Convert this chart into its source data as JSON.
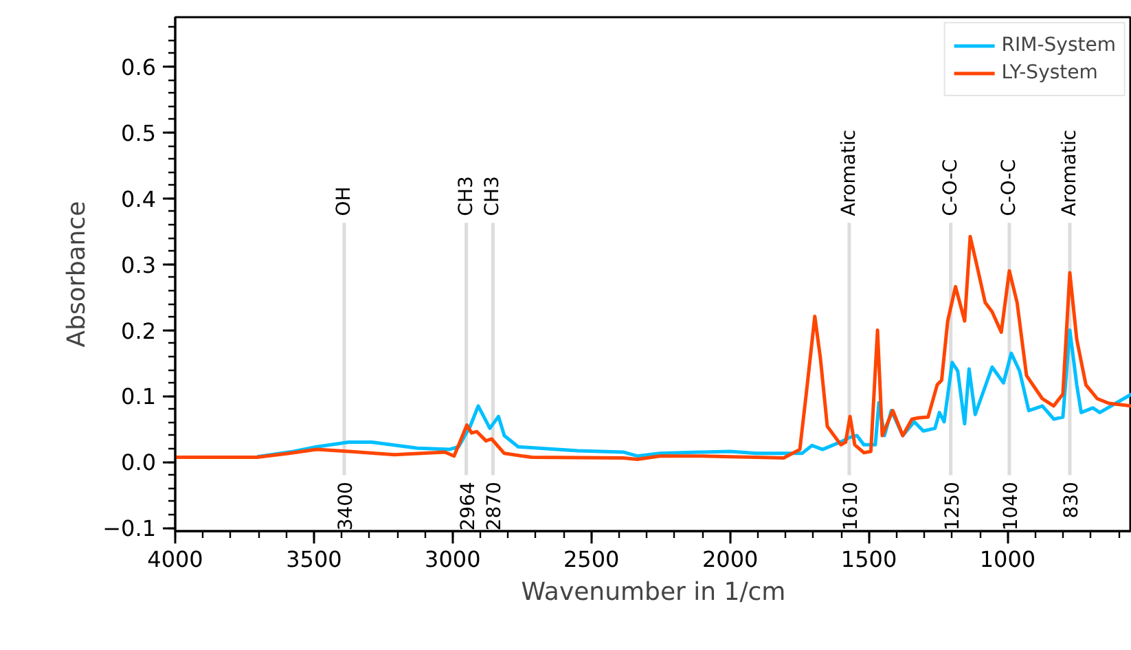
{
  "chart_data": {
    "type": "line",
    "xlabel": "Wavenumber in 1/cm",
    "ylabel": "Absorbance",
    "xlim": [
      4000,
      553
    ],
    "ylim": [
      -0.105,
      0.675
    ],
    "xticks": [
      4000,
      3500,
      3000,
      2500,
      2000,
      1500,
      1000
    ],
    "yticks": [
      {
        "value": -0.1,
        "label": "−0.1"
      },
      {
        "value": 0.0,
        "label": "0.0"
      },
      {
        "value": 0.1,
        "label": "0.1"
      },
      {
        "value": 0.2,
        "label": "0.2"
      },
      {
        "value": 0.3,
        "label": "0.3"
      },
      {
        "value": 0.4,
        "label": "0.4"
      },
      {
        "value": 0.5,
        "label": "0.5"
      },
      {
        "value": 0.6,
        "label": "0.6"
      }
    ],
    "grid": false,
    "legend": "top right",
    "series": [
      {
        "name": "RIM-System",
        "color": "#00bfff",
        "x": [
          3705,
          3573,
          3490,
          3375,
          3292,
          3127,
          3012,
          2979,
          2937,
          2908,
          2866,
          2835,
          2814,
          2764,
          2550,
          2385,
          2335,
          2253,
          2100,
          2000,
          1906,
          1741,
          1705,
          1667,
          1593,
          1571,
          1543,
          1518,
          1477,
          1464,
          1444,
          1419,
          1378,
          1337,
          1304,
          1262,
          1246,
          1229,
          1200,
          1180,
          1155,
          1139,
          1117,
          1056,
          1015,
          987,
          957,
          924,
          875,
          834,
          801,
          776,
          751,
          735,
          693,
          668,
          553
        ],
        "values": [
          0.008,
          0.016,
          0.023,
          0.03,
          0.03,
          0.021,
          0.019,
          0.023,
          0.054,
          0.085,
          0.051,
          0.069,
          0.04,
          0.023,
          0.017,
          0.015,
          0.009,
          0.013,
          0.015,
          0.016,
          0.013,
          0.013,
          0.025,
          0.019,
          0.032,
          0.037,
          0.04,
          0.026,
          0.026,
          0.09,
          0.04,
          0.078,
          0.04,
          0.061,
          0.047,
          0.051,
          0.075,
          0.061,
          0.151,
          0.138,
          0.058,
          0.141,
          0.072,
          0.144,
          0.12,
          0.165,
          0.138,
          0.078,
          0.085,
          0.065,
          0.068,
          0.2,
          0.117,
          0.075,
          0.082,
          0.075,
          0.103
        ]
      },
      {
        "name": "LY-System",
        "color": "#ff4500",
        "x": [
          4000,
          3705,
          3589,
          3490,
          3375,
          3210,
          3028,
          2995,
          2949,
          2932,
          2913,
          2880,
          2860,
          2814,
          2715,
          2385,
          2335,
          2253,
          2100,
          2000,
          1906,
          1807,
          1749,
          1724,
          1695,
          1675,
          1650,
          1601,
          1584,
          1568,
          1551,
          1518,
          1493,
          1469,
          1452,
          1414,
          1378,
          1345,
          1320,
          1287,
          1254,
          1238,
          1216,
          1188,
          1155,
          1135,
          1114,
          1081,
          1056,
          1023,
          994,
          966,
          932,
          875,
          834,
          801,
          776,
          751,
          718,
          677,
          635,
          553
        ],
        "values": [
          0.007,
          0.007,
          0.013,
          0.019,
          0.016,
          0.011,
          0.015,
          0.009,
          0.056,
          0.044,
          0.046,
          0.032,
          0.035,
          0.013,
          0.007,
          0.006,
          0.004,
          0.009,
          0.009,
          0.008,
          0.007,
          0.006,
          0.019,
          0.11,
          0.221,
          0.158,
          0.054,
          0.026,
          0.03,
          0.069,
          0.026,
          0.014,
          0.016,
          0.2,
          0.04,
          0.078,
          0.04,
          0.065,
          0.067,
          0.068,
          0.117,
          0.124,
          0.214,
          0.266,
          0.214,
          0.342,
          0.304,
          0.242,
          0.228,
          0.197,
          0.29,
          0.242,
          0.131,
          0.096,
          0.085,
          0.103,
          0.287,
          0.186,
          0.117,
          0.096,
          0.089,
          0.085
        ]
      }
    ],
    "ref_lines": [
      {
        "axis": "x",
        "value": 3391,
        "label": "OH",
        "color": "#dddddd"
      },
      {
        "axis": "x",
        "value": 2951,
        "label": "CH3",
        "color": "#dddddd"
      },
      {
        "axis": "x",
        "value": 2855,
        "label": "CH3",
        "color": "#dddddd"
      },
      {
        "axis": "x",
        "value": 1571,
        "label": "Aromatic",
        "color": "#dddddd"
      },
      {
        "axis": "x",
        "value": 1205,
        "label": "C-O-C",
        "color": "#dddddd"
      },
      {
        "axis": "x",
        "value": 994,
        "label": "C-O-C",
        "color": "#dddddd"
      },
      {
        "axis": "x",
        "value": 776,
        "label": "Aromatic",
        "color": "#dddddd"
      }
    ],
    "annotations": [
      "3400",
      "2964",
      "2870",
      "1610",
      "1250",
      "1040",
      "830"
    ]
  }
}
